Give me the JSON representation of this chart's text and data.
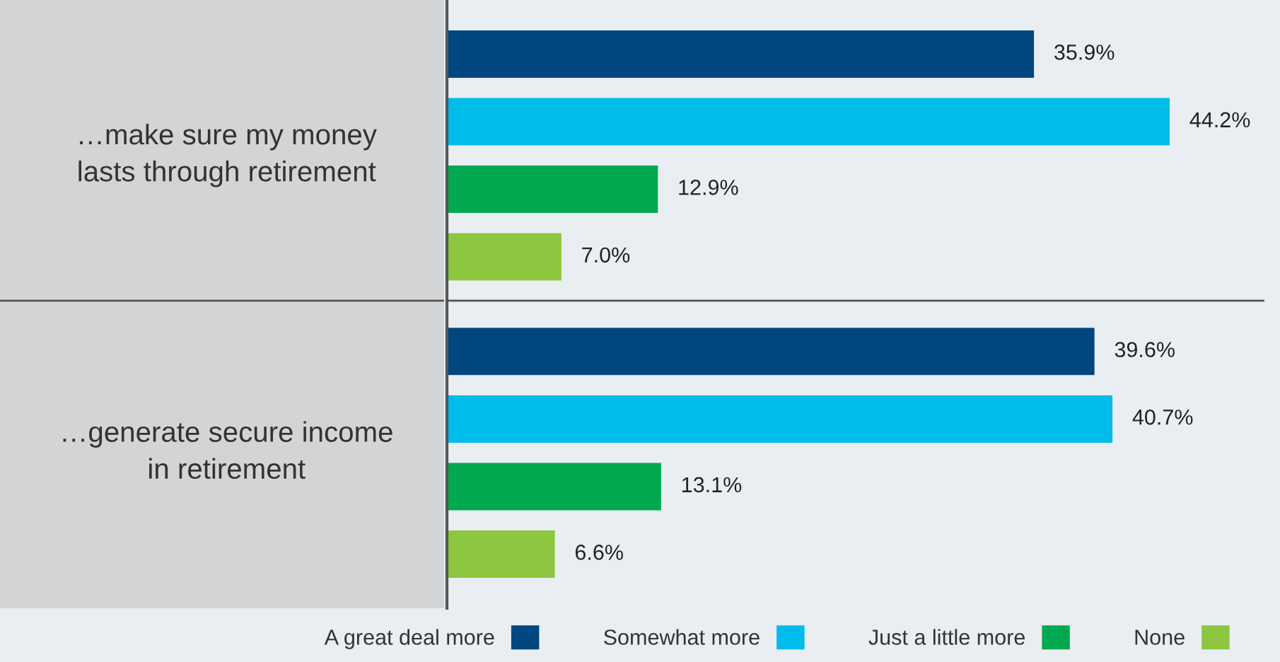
{
  "chart_data": {
    "type": "bar",
    "orientation": "horizontal",
    "categories": [
      "…make sure my money\nlasts through retirement",
      "…generate secure income\nin retirement"
    ],
    "series": [
      {
        "name": "A great deal more",
        "color": "#00467f",
        "values": [
          35.9,
          39.6
        ],
        "value_labels": [
          "35.9%",
          "39.6%"
        ]
      },
      {
        "name": "Somewhat more",
        "color": "#00bceb",
        "values": [
          44.2,
          40.7
        ],
        "value_labels": [
          "44.2%",
          "40.7%"
        ]
      },
      {
        "name": "Just a little more",
        "color": "#00a94f",
        "values": [
          12.9,
          13.1
        ],
        "value_labels": [
          "12.9%",
          "13.1%"
        ]
      },
      {
        "name": "None",
        "color": "#8dc63f",
        "values": [
          7.0,
          6.6
        ],
        "value_labels": [
          "7.0%",
          "6.6%"
        ]
      }
    ],
    "legend": "bottom"
  }
}
